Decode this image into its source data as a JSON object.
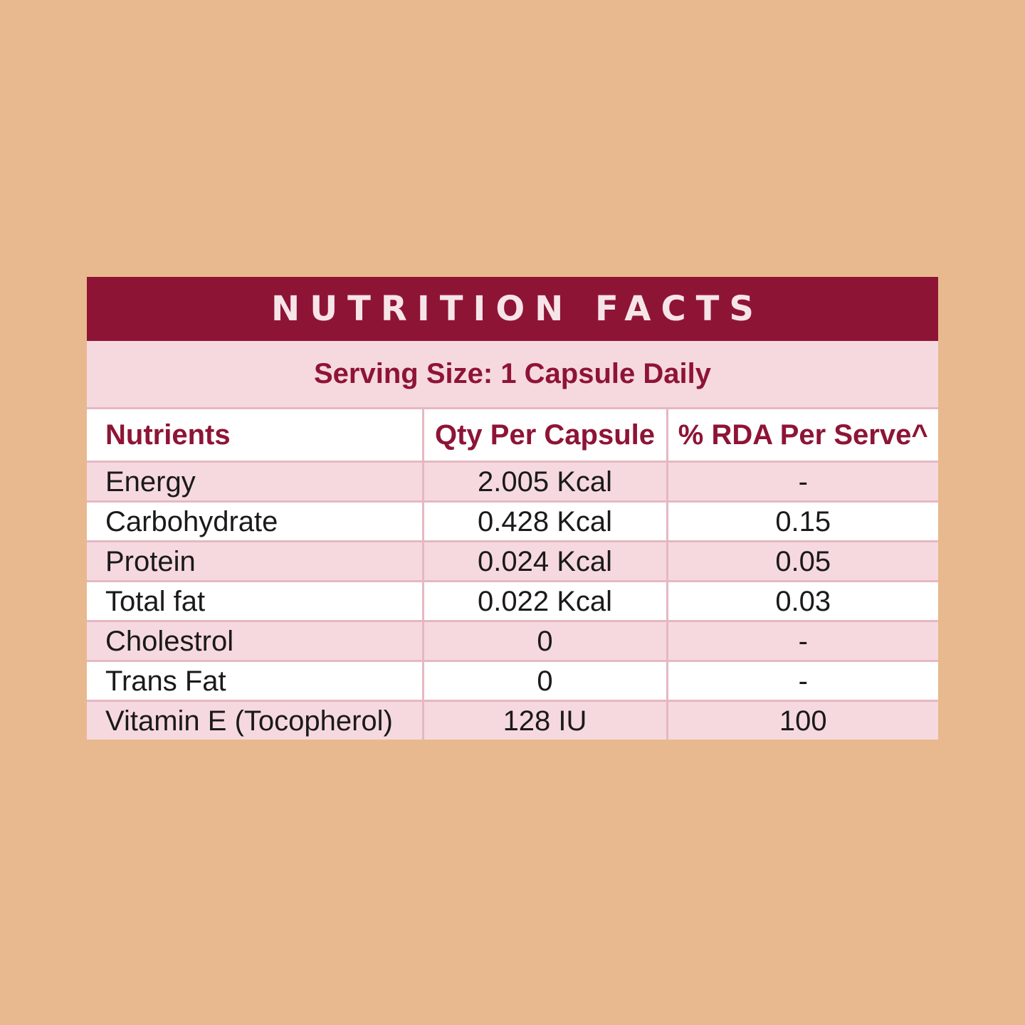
{
  "title": "NUTRITION FACTS",
  "serving_size": "Serving Size: 1 Capsule Daily",
  "table": {
    "headers": [
      "Nutrients",
      "Qty Per Capsule",
      "% RDA Per Serve^"
    ],
    "rows": [
      {
        "nutrient": "Energy",
        "qty": "2.005 Kcal",
        "rda": "-"
      },
      {
        "nutrient": "Carbohydrate",
        "qty": "0.428 Kcal",
        "rda": "0.15"
      },
      {
        "nutrient": "Protein",
        "qty": "0.024 Kcal",
        "rda": "0.05"
      },
      {
        "nutrient": "Total fat",
        "qty": "0.022 Kcal",
        "rda": "0.03"
      },
      {
        "nutrient": "Cholestrol",
        "qty": "0",
        "rda": "-"
      },
      {
        "nutrient": "Trans Fat",
        "qty": "0",
        "rda": "-"
      },
      {
        "nutrient": "Vitamin E (Tocopherol)",
        "qty": "128 IU",
        "rda": "100"
      }
    ]
  },
  "colors": {
    "background": "#e8b98f",
    "accent": "#8e1436",
    "row_pink": "#f6d9df",
    "row_white": "#ffffff",
    "border": "#e5b8c3"
  }
}
